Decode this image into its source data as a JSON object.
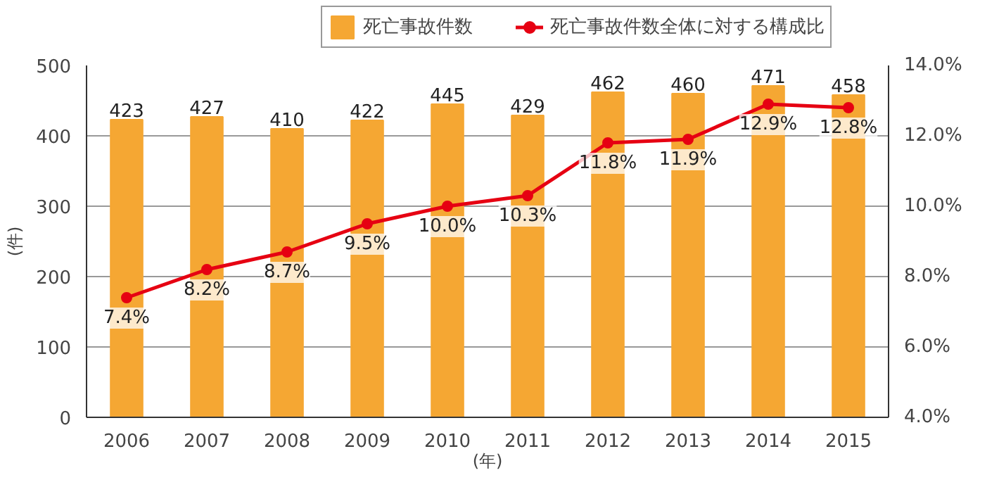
{
  "chart_data": {
    "type": "bar",
    "ylabel": "(件)",
    "xlabel": "(年)",
    "categories": [
      "2006",
      "2007",
      "2008",
      "2009",
      "2010",
      "2011",
      "2012",
      "2013",
      "2014",
      "2015"
    ],
    "series": [
      {
        "name": "死亡事故件数",
        "color": "#f5a733",
        "values": [
          423,
          427,
          410,
          422,
          445,
          429,
          462,
          460,
          471,
          458
        ],
        "value_labels": [
          "423",
          "427",
          "410",
          "422",
          "445",
          "429",
          "462",
          "460",
          "471",
          "458"
        ]
      },
      {
        "name": "死亡事故件数全体に対する構成比",
        "type": "line",
        "axis": "y2",
        "color": "#e60012",
        "marker": "circle",
        "values": [
          7.4,
          8.2,
          8.7,
          9.5,
          10.0,
          10.3,
          11.8,
          11.9,
          12.9,
          12.8
        ],
        "value_labels": [
          "7.4%",
          "8.2%",
          "8.7%",
          "9.5%",
          "10.0%",
          "10.3%",
          "11.8%",
          "11.9%",
          "12.9%",
          "12.8%"
        ]
      }
    ],
    "ylim": [
      0,
      500
    ],
    "yticks": [
      0,
      100,
      200,
      300,
      400,
      500
    ],
    "y2lim": [
      4,
      14
    ],
    "y2ticks": [
      {
        "value": 4,
        "label": "4.0%"
      },
      {
        "value": 6,
        "label": "6.0%"
      },
      {
        "value": 8,
        "label": "8.0%"
      },
      {
        "value": 10,
        "label": "10.0%"
      },
      {
        "value": 12,
        "label": "12.0%"
      },
      {
        "value": 14,
        "label": "14.0%"
      }
    ],
    "grid": "y",
    "legend": "top right"
  }
}
